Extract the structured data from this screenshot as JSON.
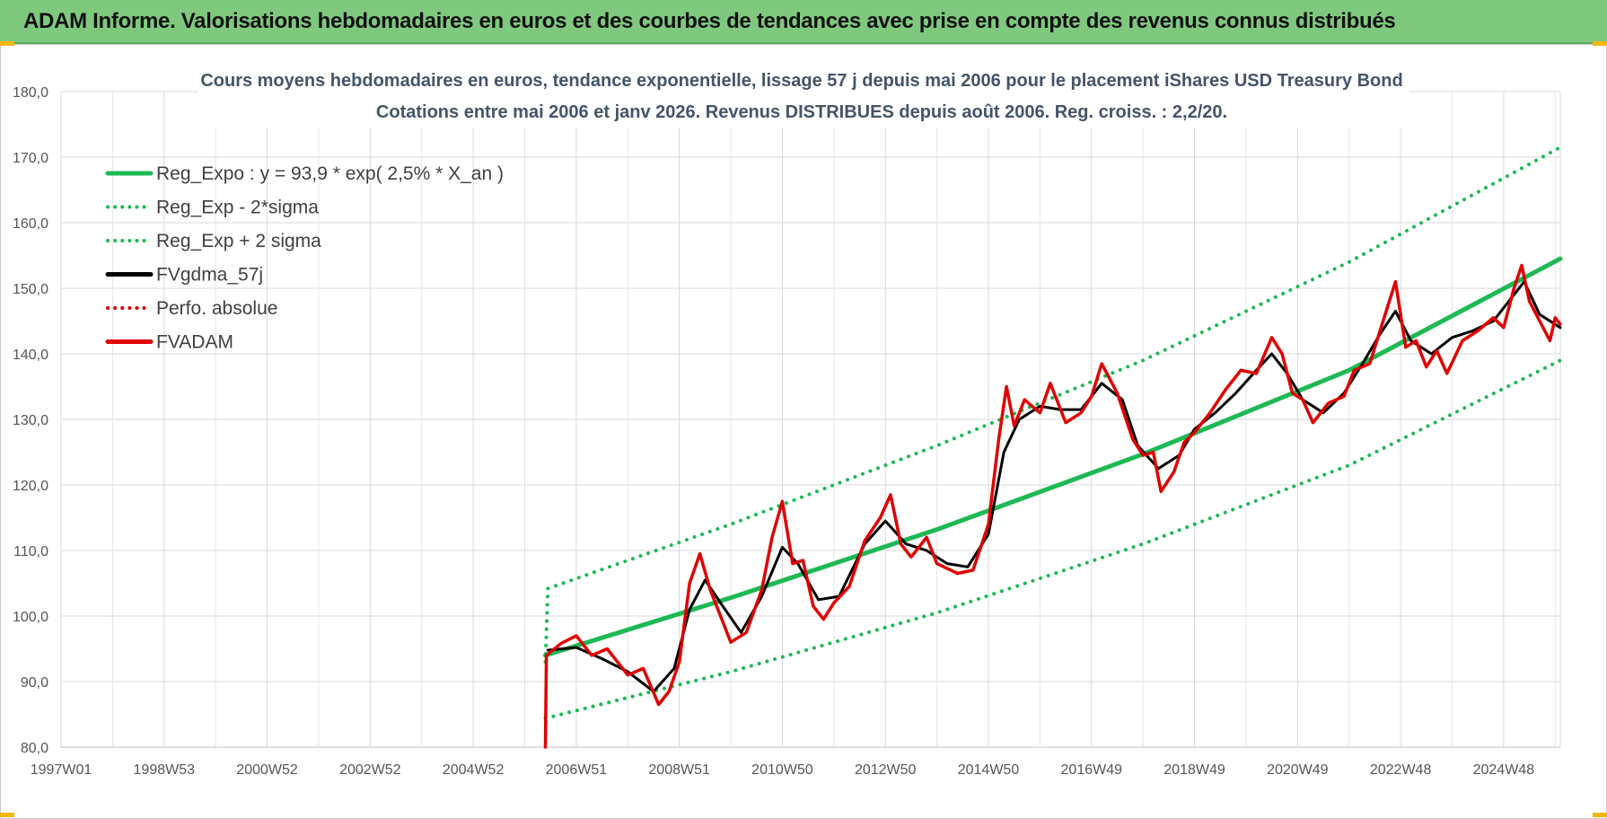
{
  "header": {
    "title": "ADAM Informe. Valorisations hebdomadaires en euros et des courbes de tendances avec prise en compte des revenus connus distribués"
  },
  "chart_data": {
    "type": "line",
    "title_lines": [
      "Cours moyens hebdomadaires en euros, tendance exponentielle, lissage 57 j depuis mai 2006 pour le placement iShares USD Treasury Bond",
      "Cotations entre mai 2006 et janv 2026. Revenus DISTRIBUES depuis août 2006. Reg. croiss. : 2,2/20."
    ],
    "y_ticks": [
      "180,0",
      "170,0",
      "160,0",
      "150,0",
      "140,0",
      "130,0",
      "120,0",
      "110,0",
      "100,0",
      "90,0",
      "80,0"
    ],
    "ylim": [
      80,
      180
    ],
    "x_ticks": [
      {
        "label": "1997W01",
        "t": 1997.0
      },
      {
        "label": "1998W53",
        "t": 1999.0
      },
      {
        "label": "2000W52",
        "t": 2001.0
      },
      {
        "label": "2002W52",
        "t": 2003.0
      },
      {
        "label": "2004W52",
        "t": 2005.0
      },
      {
        "label": "2006W51",
        "t": 2007.0
      },
      {
        "label": "2008W51",
        "t": 2009.0
      },
      {
        "label": "2010W50",
        "t": 2011.0
      },
      {
        "label": "2012W50",
        "t": 2013.0
      },
      {
        "label": "2014W50",
        "t": 2015.0
      },
      {
        "label": "2016W49",
        "t": 2017.0
      },
      {
        "label": "2018W49",
        "t": 2019.0
      },
      {
        "label": "2020W49",
        "t": 2021.0
      },
      {
        "label": "2022W48",
        "t": 2023.0
      },
      {
        "label": "2024W48",
        "t": 2025.0
      }
    ],
    "xlim": [
      1997.0,
      2026.1
    ],
    "legend_position": "top-left",
    "series": [
      {
        "name": "Reg_Expo : y = 93,9 * exp( 2,5% *  X_an )",
        "color": "#1db954",
        "style": "solid",
        "points": [
          [
            2006.4,
            94.0
          ],
          [
            2010.0,
            102.8
          ],
          [
            2014.0,
            113.2
          ],
          [
            2018.0,
            124.7
          ],
          [
            2022.0,
            137.5
          ],
          [
            2026.1,
            154.5
          ]
        ]
      },
      {
        "name": "Reg_Exp - 2*sigma",
        "color": "#1db954",
        "style": "dotted",
        "points": [
          [
            2006.4,
            84.4
          ],
          [
            2010.0,
            91.5
          ],
          [
            2014.0,
            100.5
          ],
          [
            2018.0,
            111.0
          ],
          [
            2022.0,
            123.0
          ],
          [
            2026.1,
            139.0
          ]
        ]
      },
      {
        "name": "Reg_Exp + 2 sigma",
        "color": "#1db954",
        "style": "dotted",
        "points": [
          [
            2006.4,
            93.0
          ],
          [
            2006.45,
            104.2
          ],
          [
            2010.0,
            114.0
          ],
          [
            2014.0,
            126.0
          ],
          [
            2018.0,
            139.0
          ],
          [
            2022.0,
            154.0
          ],
          [
            2026.1,
            171.5
          ]
        ]
      },
      {
        "name": "FVgdma_57j",
        "color": "#000000",
        "style": "solid",
        "points": [
          [
            2006.45,
            94.8
          ],
          [
            2007.0,
            95.2
          ],
          [
            2007.5,
            93.5
          ],
          [
            2008.0,
            91.5
          ],
          [
            2008.5,
            88.5
          ],
          [
            2008.9,
            92.0
          ],
          [
            2009.2,
            101.0
          ],
          [
            2009.5,
            105.5
          ],
          [
            2009.8,
            102.0
          ],
          [
            2010.2,
            97.5
          ],
          [
            2010.6,
            103.0
          ],
          [
            2011.0,
            110.5
          ],
          [
            2011.3,
            108.0
          ],
          [
            2011.7,
            102.5
          ],
          [
            2012.1,
            103.0
          ],
          [
            2012.6,
            111.0
          ],
          [
            2013.0,
            114.5
          ],
          [
            2013.4,
            111.0
          ],
          [
            2013.8,
            110.0
          ],
          [
            2014.2,
            108.0
          ],
          [
            2014.6,
            107.5
          ],
          [
            2015.0,
            112.5
          ],
          [
            2015.3,
            125.0
          ],
          [
            2015.6,
            130.0
          ],
          [
            2016.0,
            132.0
          ],
          [
            2016.4,
            131.5
          ],
          [
            2016.8,
            131.5
          ],
          [
            2017.2,
            135.5
          ],
          [
            2017.6,
            133.0
          ],
          [
            2017.9,
            126.0
          ],
          [
            2018.3,
            122.5
          ],
          [
            2018.7,
            124.5
          ],
          [
            2019.0,
            128.5
          ],
          [
            2019.4,
            131.0
          ],
          [
            2019.8,
            134.0
          ],
          [
            2020.2,
            137.5
          ],
          [
            2020.5,
            140.0
          ],
          [
            2020.8,
            137.0
          ],
          [
            2021.1,
            133.0
          ],
          [
            2021.5,
            131.0
          ],
          [
            2021.9,
            134.0
          ],
          [
            2022.3,
            139.0
          ],
          [
            2022.6,
            143.0
          ],
          [
            2022.9,
            146.5
          ],
          [
            2023.2,
            142.0
          ],
          [
            2023.6,
            140.0
          ],
          [
            2024.0,
            142.5
          ],
          [
            2024.4,
            143.5
          ],
          [
            2024.8,
            145.0
          ],
          [
            2025.1,
            148.0
          ],
          [
            2025.4,
            151.0
          ],
          [
            2025.7,
            146.0
          ],
          [
            2026.1,
            144.0
          ]
        ]
      },
      {
        "name": "Perfo. absolue",
        "color": "#e00000",
        "style": "dotted",
        "points": []
      },
      {
        "name": "FVADAM",
        "color": "#e00000",
        "style": "solid",
        "points": [
          [
            2006.4,
            80.0
          ],
          [
            2006.42,
            94.0
          ],
          [
            2006.7,
            95.8
          ],
          [
            2007.0,
            97.0
          ],
          [
            2007.3,
            94.0
          ],
          [
            2007.6,
            95.0
          ],
          [
            2008.0,
            91.0
          ],
          [
            2008.3,
            92.0
          ],
          [
            2008.6,
            86.5
          ],
          [
            2008.8,
            88.5
          ],
          [
            2009.0,
            93.0
          ],
          [
            2009.2,
            105.0
          ],
          [
            2009.4,
            109.5
          ],
          [
            2009.6,
            104.0
          ],
          [
            2009.8,
            100.0
          ],
          [
            2010.0,
            96.0
          ],
          [
            2010.3,
            97.5
          ],
          [
            2010.6,
            104.0
          ],
          [
            2010.8,
            112.0
          ],
          [
            2011.0,
            117.5
          ],
          [
            2011.2,
            108.0
          ],
          [
            2011.4,
            108.5
          ],
          [
            2011.6,
            101.5
          ],
          [
            2011.8,
            99.5
          ],
          [
            2012.0,
            102.0
          ],
          [
            2012.3,
            104.5
          ],
          [
            2012.6,
            111.5
          ],
          [
            2012.9,
            115.0
          ],
          [
            2013.1,
            118.5
          ],
          [
            2013.3,
            111.0
          ],
          [
            2013.5,
            109.0
          ],
          [
            2013.8,
            112.0
          ],
          [
            2014.0,
            108.0
          ],
          [
            2014.4,
            106.5
          ],
          [
            2014.7,
            107.0
          ],
          [
            2015.0,
            114.0
          ],
          [
            2015.2,
            127.0
          ],
          [
            2015.35,
            135.0
          ],
          [
            2015.5,
            129.0
          ],
          [
            2015.7,
            133.0
          ],
          [
            2016.0,
            131.0
          ],
          [
            2016.2,
            135.5
          ],
          [
            2016.5,
            129.5
          ],
          [
            2016.8,
            131.0
          ],
          [
            2017.0,
            133.5
          ],
          [
            2017.2,
            138.5
          ],
          [
            2017.5,
            134.0
          ],
          [
            2017.8,
            127.0
          ],
          [
            2018.0,
            124.5
          ],
          [
            2018.2,
            125.0
          ],
          [
            2018.35,
            119.0
          ],
          [
            2018.6,
            122.0
          ],
          [
            2018.8,
            126.5
          ],
          [
            2019.0,
            128.0
          ],
          [
            2019.3,
            131.0
          ],
          [
            2019.6,
            134.5
          ],
          [
            2019.9,
            137.5
          ],
          [
            2020.2,
            137.0
          ],
          [
            2020.5,
            142.5
          ],
          [
            2020.7,
            140.0
          ],
          [
            2020.9,
            134.0
          ],
          [
            2021.1,
            133.0
          ],
          [
            2021.3,
            129.5
          ],
          [
            2021.6,
            132.5
          ],
          [
            2021.9,
            133.5
          ],
          [
            2022.1,
            137.5
          ],
          [
            2022.4,
            138.5
          ],
          [
            2022.7,
            146.0
          ],
          [
            2022.9,
            151.0
          ],
          [
            2023.1,
            141.0
          ],
          [
            2023.3,
            142.0
          ],
          [
            2023.5,
            138.0
          ],
          [
            2023.7,
            140.5
          ],
          [
            2023.9,
            137.0
          ],
          [
            2024.2,
            142.0
          ],
          [
            2024.5,
            143.5
          ],
          [
            2024.8,
            145.5
          ],
          [
            2025.0,
            144.0
          ],
          [
            2025.2,
            150.0
          ],
          [
            2025.35,
            153.5
          ],
          [
            2025.5,
            148.0
          ],
          [
            2025.7,
            145.0
          ],
          [
            2025.9,
            142.0
          ],
          [
            2026.0,
            145.5
          ],
          [
            2026.1,
            144.5
          ]
        ]
      }
    ]
  }
}
